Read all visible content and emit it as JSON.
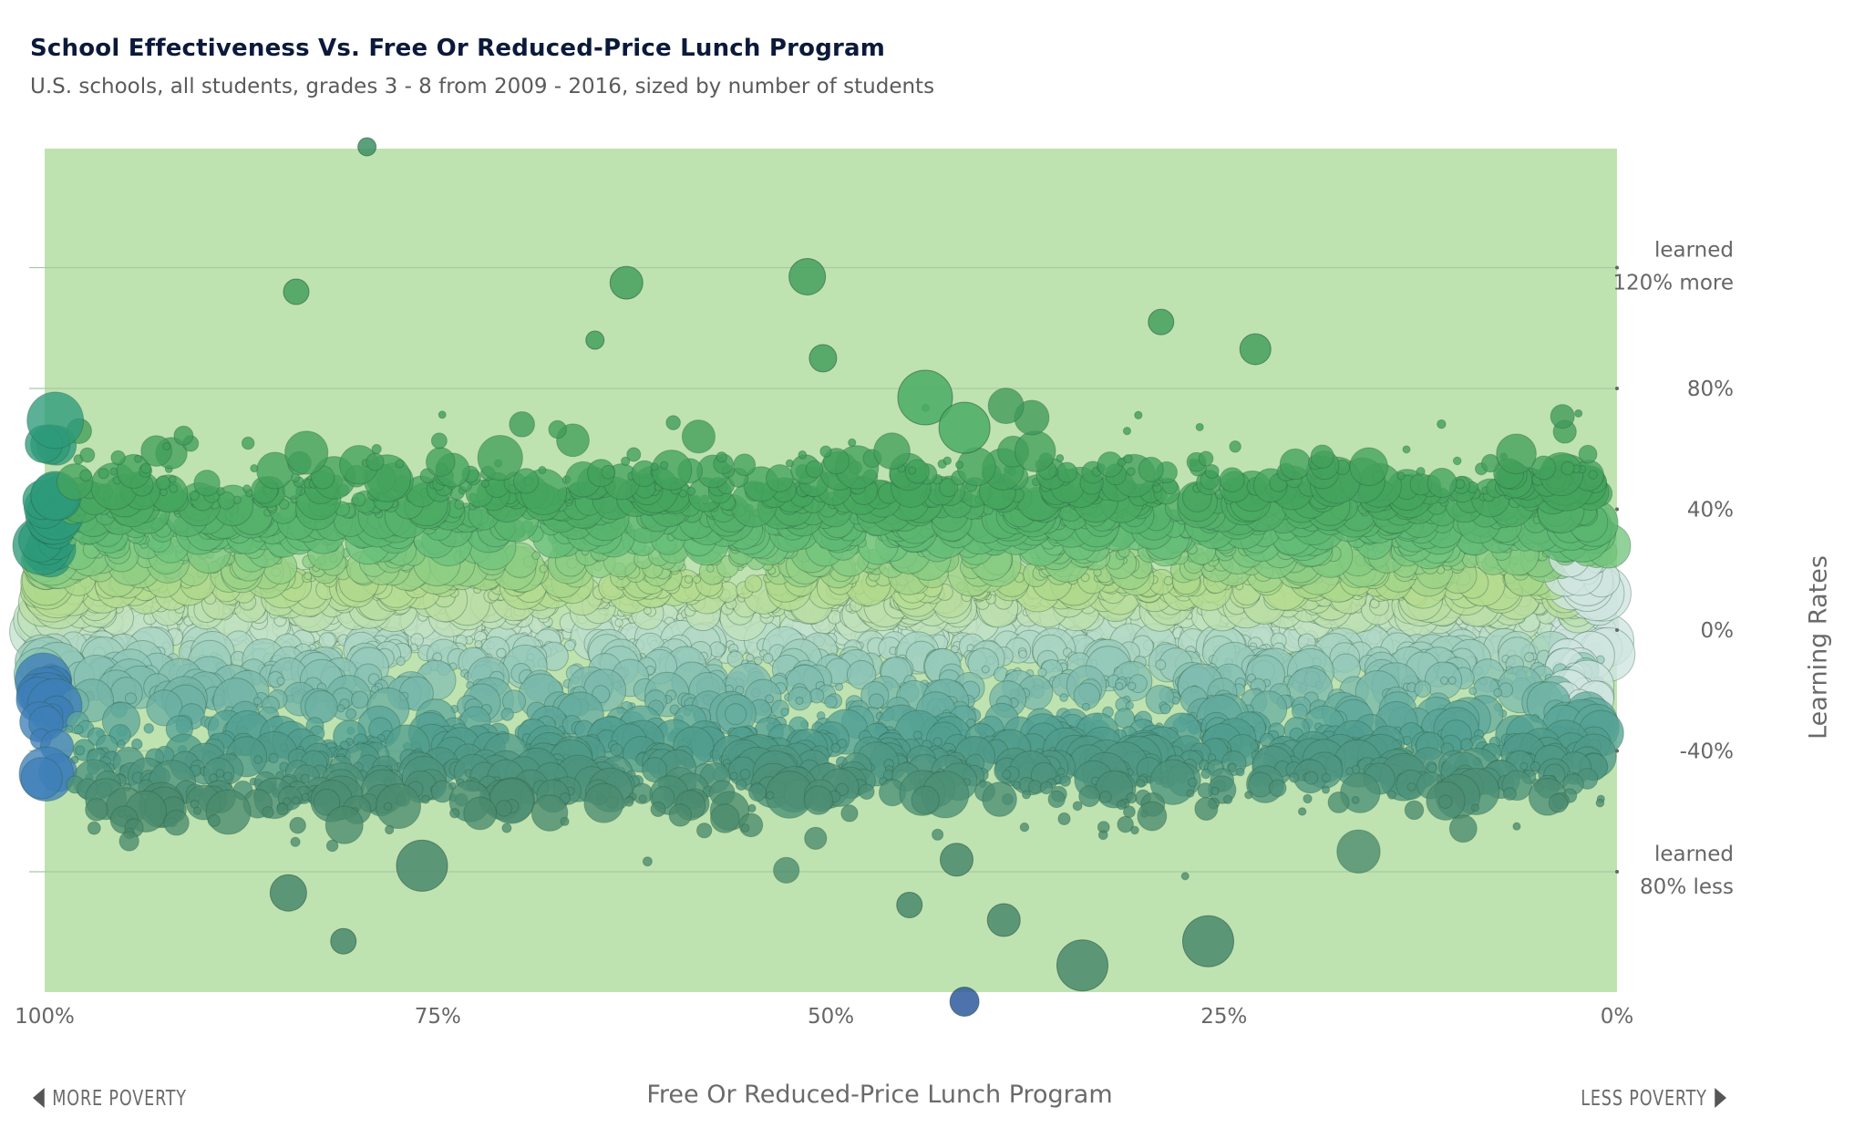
{
  "header": {
    "title": "School Effectiveness Vs. Free Or Reduced-Price Lunch Program",
    "subtitle": "U.S. schools, all students, grades 3 - 8 from 2009 - 2016, sized by number of students"
  },
  "footer": {
    "more_poverty": "MORE POVERTY",
    "less_poverty": "LESS POVERTY"
  },
  "chart_data": {
    "type": "scatter",
    "title": "School Effectiveness Vs. Free Or Reduced-Price Lunch Program",
    "subtitle": "U.S. schools, all students, grades 3 - 8 from 2009 - 2016, sized by number of students",
    "xlabel": "Free Or Reduced-Price Lunch Program",
    "ylabel": "Learning Rates",
    "x_unit": "%",
    "y_unit": "%",
    "x_reversed": true,
    "xlim": [
      100,
      0
    ],
    "ylim": [
      -120,
      160
    ],
    "x_ticks": [
      {
        "value": 100,
        "label": "100%"
      },
      {
        "value": 75,
        "label": "75%"
      },
      {
        "value": 50,
        "label": "50%"
      },
      {
        "value": 25,
        "label": "25%"
      },
      {
        "value": 0,
        "label": "0%"
      }
    ],
    "y_ticks": [
      {
        "value": 120,
        "label": [
          "learned",
          "120% more"
        ]
      },
      {
        "value": 80,
        "label": [
          "80%"
        ]
      },
      {
        "value": 40,
        "label": [
          "40%"
        ]
      },
      {
        "value": 0,
        "label": [
          "0%"
        ]
      },
      {
        "value": -40,
        "label": [
          "-40%"
        ]
      },
      {
        "value": -80,
        "label": [
          "learned",
          "80% less"
        ]
      }
    ],
    "grid": true,
    "band_color": "#bee3b1",
    "color_scale": [
      {
        "y": -60,
        "color": "#4a8a6d"
      },
      {
        "y": -35,
        "color": "#52a093"
      },
      {
        "y": -15,
        "color": "#8ac3b5"
      },
      {
        "y": 0,
        "color": "#c5e3cf"
      },
      {
        "y": 15,
        "color": "#b4db8e"
      },
      {
        "y": 30,
        "color": "#68c07a"
      },
      {
        "y": 45,
        "color": "#45a55e"
      },
      {
        "y": 70,
        "color": "#3f9a58"
      }
    ],
    "density": {
      "bulk_mean": 5,
      "bulk_sd": 19,
      "upper_band_mean": 40,
      "upper_band_sd": 8,
      "lower_band_mean": -42,
      "lower_band_sd": 9,
      "approx_points": 5200
    },
    "notable_points": [
      {
        "x": 79.5,
        "y": 160,
        "size": 10,
        "color": "#3d8f63"
      },
      {
        "x": 84,
        "y": 112,
        "size": 14,
        "color": "#45a05e"
      },
      {
        "x": 63,
        "y": 115,
        "size": 18,
        "color": "#45a05e"
      },
      {
        "x": 51.5,
        "y": 117,
        "size": 20,
        "color": "#45a05e"
      },
      {
        "x": 29,
        "y": 102,
        "size": 14,
        "color": "#45a05e"
      },
      {
        "x": 23,
        "y": 93,
        "size": 17,
        "color": "#45a05e"
      },
      {
        "x": 50.5,
        "y": 90,
        "size": 15,
        "color": "#45a05e"
      },
      {
        "x": 65,
        "y": 96,
        "size": 10,
        "color": "#45a05e"
      },
      {
        "x": 44,
        "y": 77,
        "size": 30,
        "color": "#4aab64"
      },
      {
        "x": 41.5,
        "y": 67,
        "size": 28,
        "color": "#4aab64"
      },
      {
        "x": 81,
        "y": -103,
        "size": 14,
        "color": "#4a8a6d"
      },
      {
        "x": 84.5,
        "y": -87,
        "size": 20,
        "color": "#4a8a6d"
      },
      {
        "x": 76,
        "y": -78,
        "size": 28,
        "color": "#4a8a6d"
      },
      {
        "x": 42,
        "y": -76,
        "size": 18,
        "color": "#4a8a6d"
      },
      {
        "x": 45,
        "y": -91,
        "size": 14,
        "color": "#4a8a6d"
      },
      {
        "x": 39,
        "y": -96,
        "size": 18,
        "color": "#4a8a6d"
      },
      {
        "x": 34,
        "y": -111,
        "size": 28,
        "color": "#4a8a6d"
      },
      {
        "x": 26,
        "y": -103,
        "size": 28,
        "color": "#4a8a6d"
      },
      {
        "x": 41.5,
        "y": -123,
        "size": 16,
        "color": "#2f5a9e"
      }
    ]
  }
}
